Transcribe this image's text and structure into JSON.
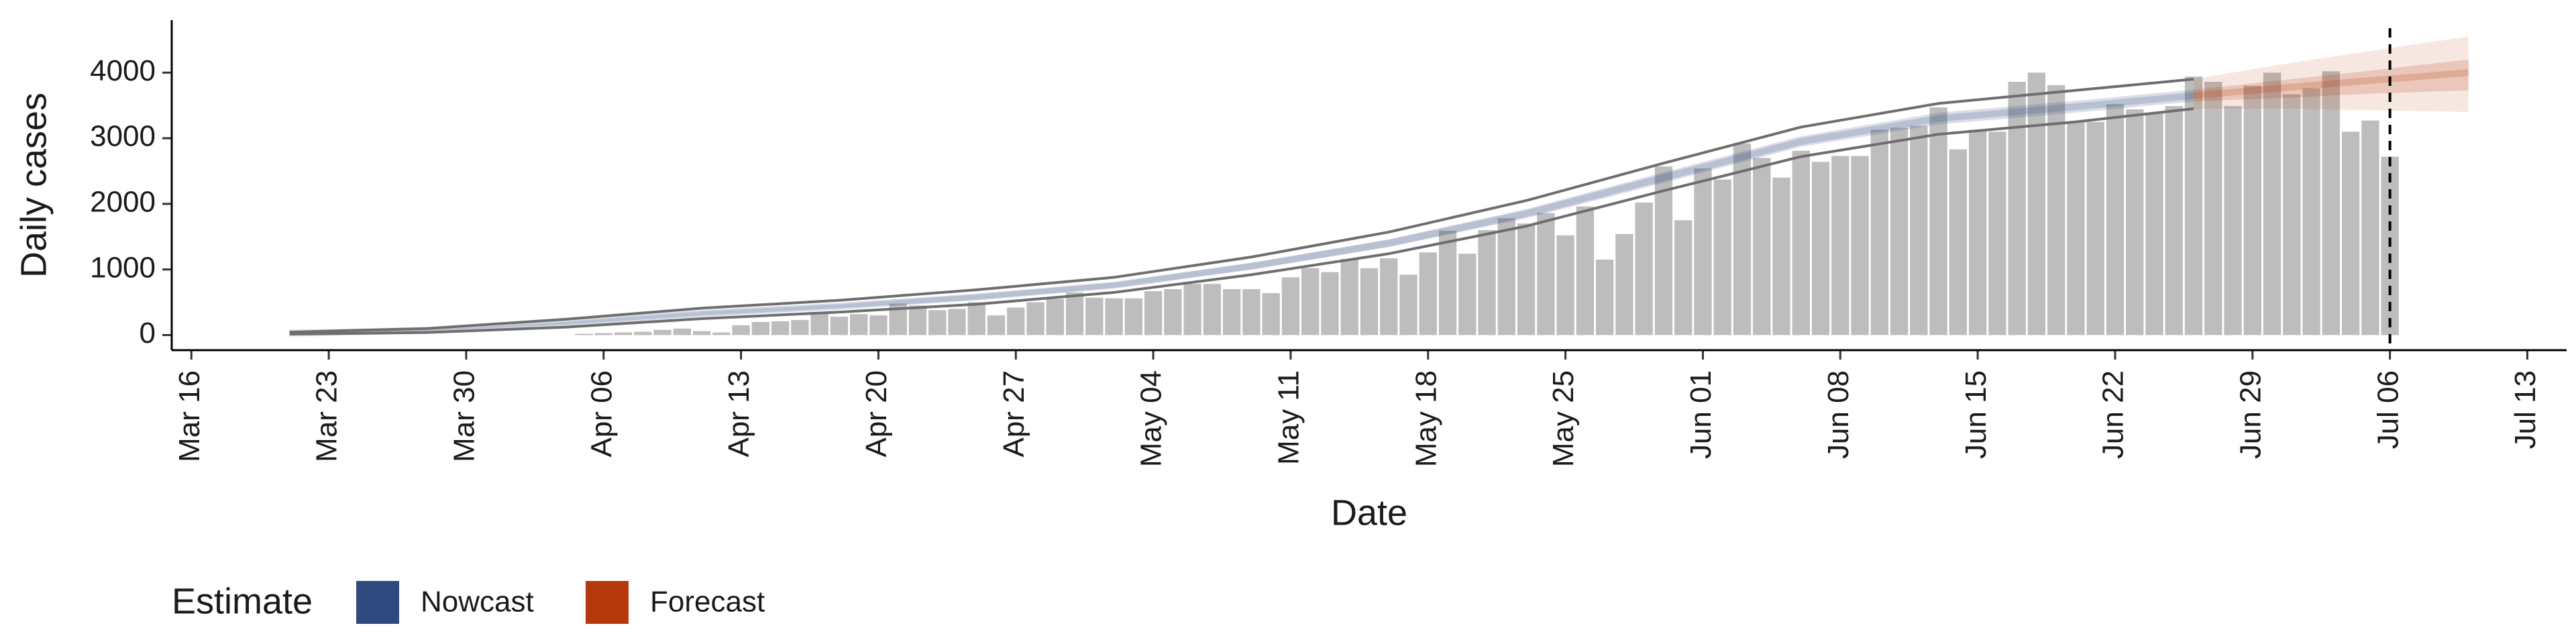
{
  "chart_data": {
    "type": "bar",
    "x_label": "Date",
    "y_label": "Daily cases",
    "x": [
      "Apr 05",
      "Apr 06",
      "Apr 07",
      "Apr 08",
      "Apr 09",
      "Apr 10",
      "Apr 11",
      "Apr 12",
      "Apr 13",
      "Apr 14",
      "Apr 15",
      "Apr 16",
      "Apr 17",
      "Apr 18",
      "Apr 19",
      "Apr 20",
      "Apr 21",
      "Apr 22",
      "Apr 23",
      "Apr 24",
      "Apr 25",
      "Apr 26",
      "Apr 27",
      "Apr 28",
      "Apr 29",
      "Apr 30",
      "May 01",
      "May 02",
      "May 03",
      "May 04",
      "May 05",
      "May 06",
      "May 07",
      "May 08",
      "May 09",
      "May 10",
      "May 11",
      "May 12",
      "May 13",
      "May 14",
      "May 15",
      "May 16",
      "May 17",
      "May 18",
      "May 19",
      "May 20",
      "May 21",
      "May 22",
      "May 23",
      "May 24",
      "May 25",
      "May 26",
      "May 27",
      "May 28",
      "May 29",
      "May 30",
      "May 31",
      "Jun 01",
      "Jun 02",
      "Jun 03",
      "Jun 04",
      "Jun 05",
      "Jun 06",
      "Jun 07",
      "Jun 08",
      "Jun 09",
      "Jun 10",
      "Jun 11",
      "Jun 12",
      "Jun 13",
      "Jun 14",
      "Jun 15",
      "Jun 16",
      "Jun 17",
      "Jun 18",
      "Jun 19",
      "Jun 20",
      "Jun 21",
      "Jun 22",
      "Jun 23",
      "Jun 24",
      "Jun 25",
      "Jun 26",
      "Jun 27",
      "Jun 28",
      "Jun 29",
      "Jun 30",
      "Jul 01",
      "Jul 02",
      "Jul 03",
      "Jul 04",
      "Jul 05",
      "Jul 06"
    ],
    "values": [
      20,
      30,
      40,
      50,
      80,
      100,
      60,
      40,
      150,
      200,
      210,
      230,
      350,
      280,
      320,
      300,
      480,
      450,
      380,
      400,
      500,
      300,
      420,
      500,
      550,
      650,
      570,
      560,
      560,
      670,
      700,
      780,
      780,
      700,
      700,
      640,
      880,
      1020,
      960,
      1160,
      1020,
      1170,
      920,
      1260,
      1590,
      1240,
      1600,
      1780,
      1700,
      1860,
      1520,
      1960,
      1150,
      1540,
      2020,
      2570,
      1750,
      2540,
      2370,
      2920,
      2700,
      2400,
      2810,
      2640,
      2730,
      2730,
      3130,
      3160,
      3190,
      3470,
      2830,
      3130,
      3100,
      3860,
      4000,
      3810,
      3240,
      3250,
      3520,
      3440,
      3390,
      3490,
      3940,
      3860,
      3490,
      3800,
      4000,
      3670,
      3760,
      4020,
      3100,
      3270,
      2720
    ],
    "color": "#bdbdbd",
    "series": [
      {
        "name": "Nowcast",
        "color": "#30497f",
        "outer_style": "line",
        "x": [
          "Mar 21",
          "Mar 28",
          "Apr 04",
          "Apr 11",
          "Apr 18",
          "Apr 25",
          "May 02",
          "May 09",
          "May 16",
          "May 23",
          "May 30",
          "Jun 06",
          "Jun 13",
          "Jun 20",
          "Jun 26"
        ],
        "median": [
          30,
          70,
          180,
          330,
          440,
          580,
          760,
          1050,
          1400,
          1850,
          2400,
          2950,
          3300,
          3480,
          3650
        ],
        "lower": [
          25,
          60,
          160,
          300,
          410,
          540,
          720,
          1000,
          1340,
          1780,
          2320,
          2870,
          3210,
          3390,
          3560
        ],
        "upper": [
          35,
          80,
          200,
          360,
          470,
          620,
          800,
          1100,
          1460,
          1920,
          2480,
          3030,
          3390,
          3570,
          3740
        ],
        "lower_outer": [
          15,
          40,
          120,
          250,
          350,
          470,
          650,
          920,
          1240,
          1660,
          2200,
          2720,
          3060,
          3250,
          3450
        ],
        "upper_outer": [
          45,
          100,
          240,
          410,
          530,
          690,
          880,
          1190,
          1570,
          2050,
          2620,
          3170,
          3530,
          3730,
          3900
        ]
      },
      {
        "name": "Forecast",
        "color": "#b5390c",
        "outer_style": "fill",
        "x": [
          "Jun 26",
          "Jul 01",
          "Jul 05",
          "Jul 10"
        ],
        "median": [
          3650,
          3780,
          3880,
          4000
        ],
        "lower": [
          3560,
          3620,
          3680,
          3730
        ],
        "upper": [
          3740,
          3900,
          4030,
          4200
        ],
        "lower_outer": [
          3450,
          3450,
          3430,
          3400
        ],
        "upper_outer": [
          3900,
          4150,
          4330,
          4550
        ]
      }
    ],
    "legend_title": "Estimate",
    "vline": "Jul 06",
    "xlim": [
      "Mar 15",
      "Jul 15"
    ],
    "xticks": [
      "Mar 16",
      "Mar 23",
      "Mar 30",
      "Apr 06",
      "Apr 13",
      "Apr 20",
      "Apr 27",
      "May 04",
      "May 11",
      "May 18",
      "May 25",
      "Jun 01",
      "Jun 08",
      "Jun 15",
      "Jun 22",
      "Jun 29",
      "Jul 06",
      "Jul 13"
    ],
    "ylim": [
      -230,
      4800
    ],
    "yticks": [
      0,
      1000,
      2000,
      3000,
      4000
    ]
  }
}
